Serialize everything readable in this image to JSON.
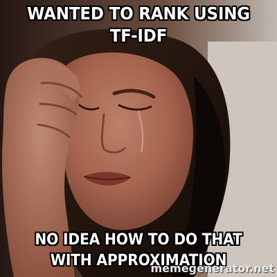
{
  "meme": {
    "top_text": "WANTED TO RANK USING TF-IDF",
    "bottom_text": "NO IDEA HOW TO DO THAT WITH APPROXIMATION",
    "watermark_visible": "memegenerator.net"
  },
  "colors": {
    "caption_text": "#ffffff",
    "caption_outline": "#000000",
    "background": "#000000"
  }
}
